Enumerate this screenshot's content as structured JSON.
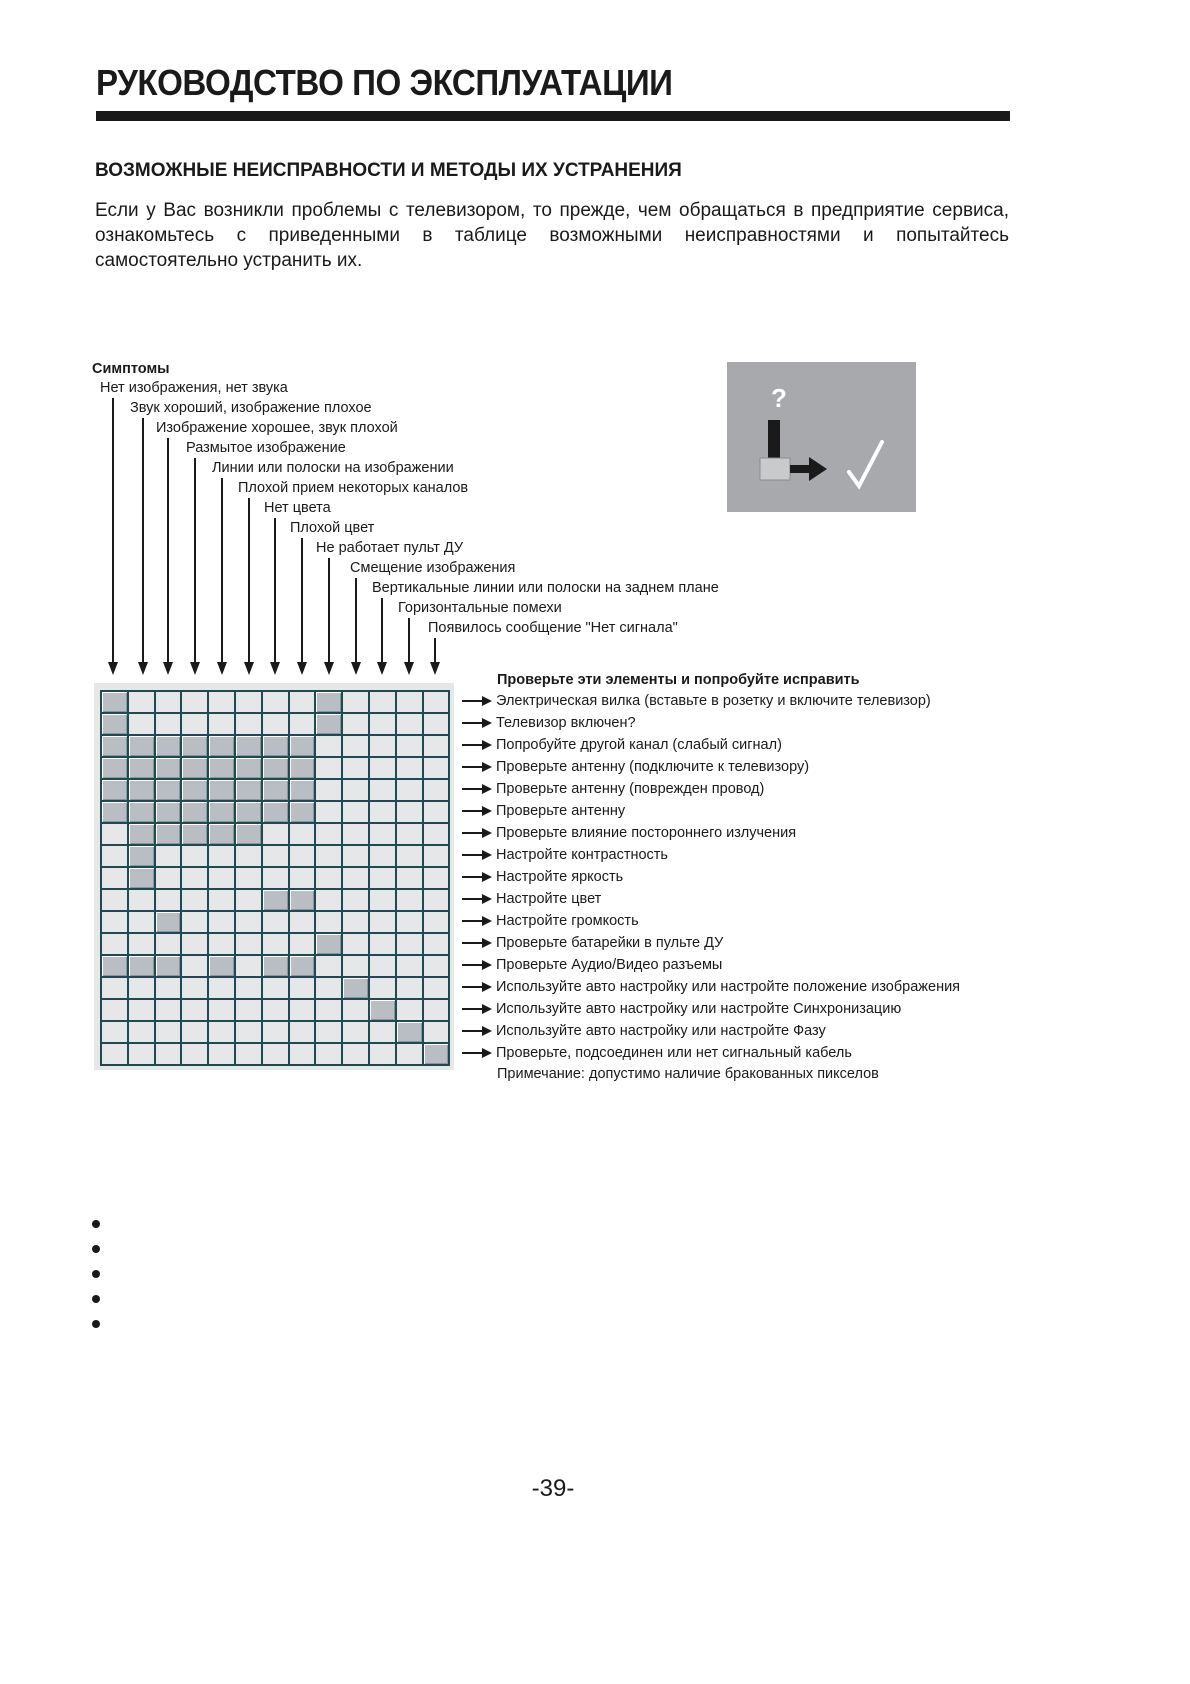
{
  "header": {
    "title": "РУКОВОДСТВО ПО ЭКСПЛУАТАЦИИ"
  },
  "section": {
    "title": "ВОЗМОЖНЫЕ НЕИСПРАВНОСТИ И МЕТОДЫ ИХ УСТРАНЕНИЯ",
    "intro": "Если у Вас возникли проблемы с телевизором, то прежде, чем обращаться в предприятие сервиса, ознакомьтесь с приведенными в таблице возможными неисправностями и попытайтесь самостоятельно устранить их."
  },
  "symptoms_header": "Симптомы",
  "symptoms": [
    "Нет изображения, нет звука",
    "Звук хороший, изображение плохое",
    "Изображение хорошее, звук плохой",
    "Размытое изображение",
    "Линии или полоски на изображении",
    "Плохой прием некоторых каналов",
    "Нет цвета",
    "Плохой цвет",
    "Не работает пульт ДУ",
    "Смещение изображения",
    "Вертикальные линии или полоски на заднем плане",
    "Горизонтальные помехи",
    "Появилось сообщение \"Нет сигнала\""
  ],
  "checks_header": "Проверьте эти элементы и попробуйте исправить",
  "checks": [
    "Электрическая вилка (вставьте в розетку и включите телевизор)",
    "Телевизор включен?",
    "Попробуйте другой канал (слабый сигнал)",
    "Проверьте антенну (подключите к телевизору)",
    "Проверьте антенну (поврежден провод)",
    "Проверьте антенну",
    "Проверьте влияние постороннего излучения",
    "Настройте контрастность",
    "Настройте яркость",
    "Настройте цвет",
    "Настройте громкость",
    "Проверьте батарейки в пульте ДУ",
    "Проверьте Аудио/Видео разъемы",
    "Используйте авто настройку или настройте положение изображения",
    "Используйте авто настройку или настройте Синхронизацию",
    "Используйте авто настройку или настройте Фазу",
    "Проверьте, подсоединен или нет сигнальный кабель"
  ],
  "note": "Примечание: допустимо наличие бракованных пикселов",
  "matrix": [
    [
      0,
      8
    ],
    [
      0,
      8
    ],
    [
      0,
      1,
      2,
      3,
      4,
      5,
      6,
      7
    ],
    [
      0,
      1,
      2,
      3,
      4,
      5,
      6,
      7
    ],
    [
      0,
      1,
      2,
      3,
      4,
      5,
      6,
      7
    ],
    [
      0,
      1,
      2,
      3,
      4,
      5,
      6,
      7
    ],
    [
      1,
      2,
      3,
      4,
      5
    ],
    [
      1
    ],
    [
      1
    ],
    [
      6,
      7
    ],
    [
      2
    ],
    [
      8
    ],
    [
      0,
      1,
      2,
      4,
      6,
      7
    ],
    [
      9
    ],
    [
      10
    ],
    [
      11
    ],
    [
      12
    ]
  ],
  "icon_box": {
    "question_mark": "?",
    "icon": "check-mark-icon",
    "background": "#a7a9ac"
  },
  "bullets_count": 5,
  "page_number": "-39-"
}
